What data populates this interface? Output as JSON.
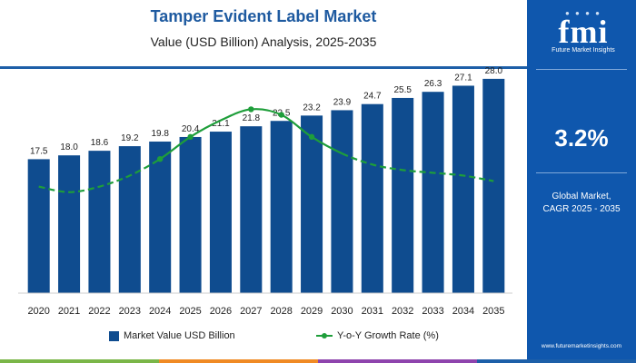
{
  "header": {
    "title": "Tamper Evident Label Market",
    "subtitle": "Value (USD Billion) Analysis, 2025-2035"
  },
  "legend": {
    "bar_label": "Market Value USD Billion",
    "line_label": "Y-o-Y Growth Rate (%)"
  },
  "sidebar": {
    "logo_text": "fmi",
    "logo_sub": "Future Market Insights",
    "cagr_value": "3.2%",
    "cagr_label_line1": "Global Market,",
    "cagr_label_line2": "CAGR 2025 - 2035",
    "website": "www.futuremarketinsights.com"
  },
  "colors": {
    "bar": "#0f4c8f",
    "line": "#1e9e3a",
    "title": "#1e5aa0",
    "sidebar": "#0f57ad",
    "strip": [
      "#7ab648",
      "#f08a24",
      "#8e44ad",
      "#1d5fa8"
    ]
  },
  "chart_data": {
    "type": "bar",
    "title": "Tamper Evident Label Market",
    "subtitle": "Value (USD Billion) Analysis, 2025-2035",
    "categories": [
      "2020",
      "2021",
      "2022",
      "2023",
      "2024",
      "2025",
      "2026",
      "2027",
      "2028",
      "2029",
      "2030",
      "2031",
      "2032",
      "2033",
      "2034",
      "2035"
    ],
    "series": [
      {
        "name": "Market Value USD Billion",
        "type": "bar",
        "values": [
          17.5,
          18.0,
          18.6,
          19.2,
          19.8,
          20.4,
          21.1,
          21.8,
          22.5,
          23.2,
          23.9,
          24.7,
          25.5,
          26.3,
          27.1,
          28.0
        ]
      },
      {
        "name": "Y-o-Y Growth Rate (%)",
        "type": "line",
        "values": [
          2.6,
          2.5,
          2.6,
          2.8,
          3.1,
          3.5,
          3.8,
          4.0,
          3.9,
          3.5,
          3.2,
          3.0,
          2.9,
          2.85,
          2.8,
          2.7
        ],
        "marked_points": [
          4,
          5,
          7,
          8,
          9
        ]
      }
    ],
    "ylim": [
      0,
      30
    ],
    "growth_range": [
      1.0,
      4.5
    ],
    "grid": false,
    "legend_position": "bottom"
  }
}
